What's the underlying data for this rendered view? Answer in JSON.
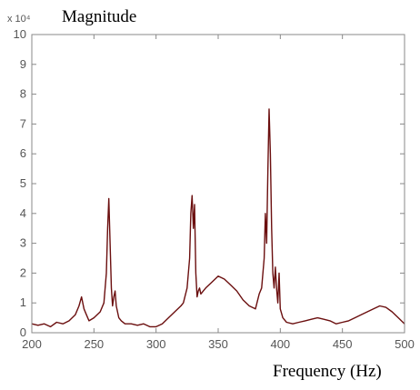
{
  "chart_data": {
    "type": "line",
    "title": "Magnitude",
    "xlabel": "Frequency (Hz)",
    "ylabel": "",
    "y_scale_label": "x 10⁴",
    "xlim": [
      200,
      500
    ],
    "ylim": [
      0,
      10
    ],
    "x_ticks": [
      200,
      250,
      300,
      350,
      400,
      450,
      500
    ],
    "y_ticks": [
      0,
      1,
      2,
      3,
      4,
      5,
      6,
      7,
      8,
      9,
      10
    ],
    "grid": false,
    "line_color": "#6b0f0f",
    "series": [
      {
        "x": [
          200,
          205,
          210,
          215,
          220,
          225,
          230,
          235,
          238,
          240,
          242,
          244,
          246,
          250,
          255,
          258,
          260,
          261,
          262,
          263,
          264,
          265,
          266,
          267,
          268,
          270,
          272,
          275,
          280,
          285,
          290,
          295,
          300,
          305,
          310,
          315,
          320,
          322,
          325,
          327,
          328,
          329,
          330,
          331,
          332,
          333,
          334,
          335,
          336,
          338,
          340,
          345,
          350,
          355,
          360,
          365,
          370,
          375,
          380,
          383,
          385,
          387,
          388,
          389,
          390,
          391,
          392,
          393,
          394,
          395,
          396,
          397,
          398,
          399,
          400,
          402,
          405,
          410,
          415,
          420,
          425,
          430,
          435,
          440,
          445,
          450,
          455,
          460,
          465,
          470,
          475,
          480,
          485,
          490,
          495,
          500
        ],
        "values": [
          0.3,
          0.25,
          0.3,
          0.2,
          0.35,
          0.3,
          0.4,
          0.6,
          0.9,
          1.2,
          0.8,
          0.6,
          0.4,
          0.5,
          0.7,
          1.0,
          2.0,
          3.5,
          4.5,
          3.0,
          1.5,
          0.9,
          1.2,
          1.4,
          0.9,
          0.5,
          0.4,
          0.3,
          0.3,
          0.25,
          0.3,
          0.2,
          0.2,
          0.3,
          0.5,
          0.7,
          0.9,
          1.0,
          1.5,
          2.5,
          4.0,
          4.6,
          3.5,
          4.3,
          2.0,
          1.2,
          1.4,
          1.5,
          1.3,
          1.4,
          1.5,
          1.7,
          1.9,
          1.8,
          1.6,
          1.4,
          1.1,
          0.9,
          0.8,
          1.3,
          1.5,
          2.5,
          4.0,
          3.0,
          5.5,
          7.5,
          6.0,
          3.5,
          2.0,
          1.5,
          2.2,
          1.5,
          1.0,
          2.0,
          0.8,
          0.5,
          0.35,
          0.3,
          0.35,
          0.4,
          0.45,
          0.5,
          0.45,
          0.4,
          0.3,
          0.35,
          0.4,
          0.5,
          0.6,
          0.7,
          0.8,
          0.9,
          0.85,
          0.7,
          0.5,
          0.3
        ]
      }
    ]
  }
}
